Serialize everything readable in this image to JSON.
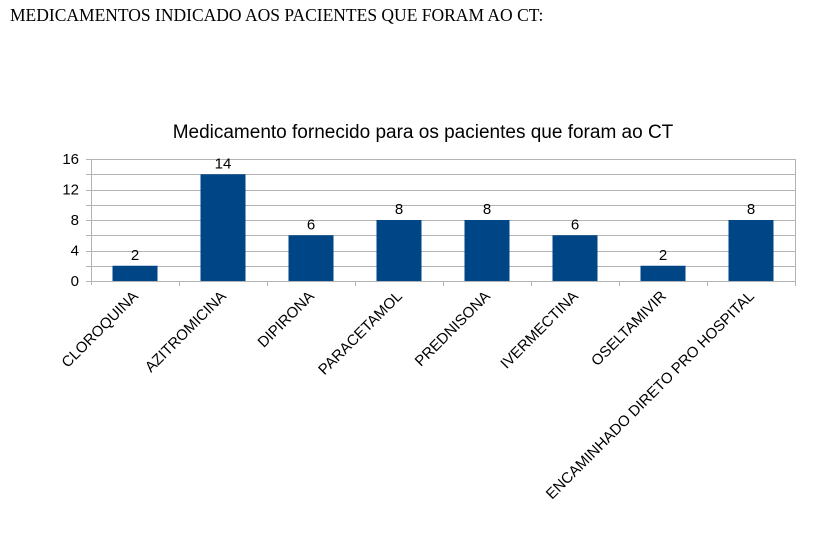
{
  "document": {
    "heading": "MEDICAMENTOS INDICADO AOS PACIENTES QUE FORAM AO CT:"
  },
  "chart_data": {
    "type": "bar",
    "title": "Medicamento fornecido para os pacientes que foram ao CT",
    "categories": [
      "CLOROQUINA",
      "AZITROMICINA",
      "DIPIRONA",
      "PARACETAMOL",
      "PREDNISONA",
      "IVERMECTINA",
      "OSELTAMIVIR",
      "ENCAMINHADO DIRETO PRO HOSPITAL"
    ],
    "values": [
      2,
      14,
      6,
      8,
      8,
      6,
      2,
      8
    ],
    "ylim": [
      0,
      16
    ],
    "yticks": [
      0,
      4,
      8,
      12,
      16
    ],
    "minor_gridlines_step": 2,
    "grid": true,
    "data_labels": true,
    "xlabel": "",
    "ylabel": "",
    "bar_color": "#004586"
  }
}
